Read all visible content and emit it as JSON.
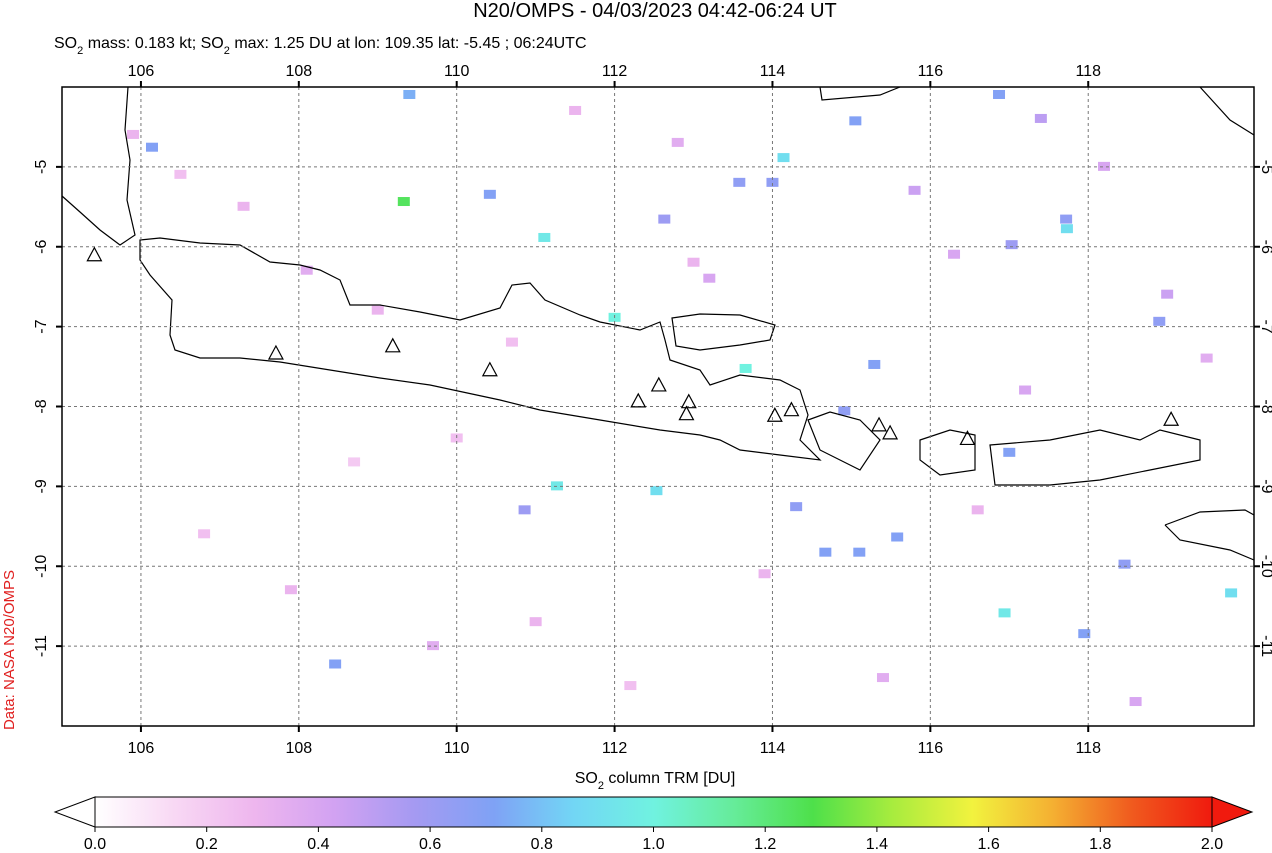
{
  "chart_data": {
    "type": "map",
    "title": "N20/OMPS - 04/03/2023 04:42-06:24 UT",
    "subtitle_parts": [
      "SO",
      "2",
      " mass: 0.183 kt; SO",
      "2",
      " max: 1.25 DU at lon: 109.35 lat: -5.45 ; 06:24UTC"
    ],
    "source": "Data: NASA N20/OMPS",
    "xlim": [
      105,
      120.1
    ],
    "ylim": [
      -12,
      -4
    ],
    "xticks": [
      106,
      108,
      110,
      112,
      114,
      116,
      118
    ],
    "yticks": [
      -5,
      -6,
      -7,
      -8,
      -9,
      -10,
      -11
    ],
    "grid": true,
    "colorbar": {
      "label_parts": [
        "SO",
        "2",
        " column TRM [DU]"
      ],
      "lim": [
        0,
        2
      ],
      "ticks": [
        {
          "value": 0,
          "label": "0.0"
        },
        {
          "value": 0.2,
          "label": "0.2"
        },
        {
          "value": 0.4,
          "label": "0.4"
        },
        {
          "value": 0.6,
          "label": "0.6"
        },
        {
          "value": 0.8,
          "label": "0.8"
        },
        {
          "value": 1,
          "label": "1.0"
        },
        {
          "value": 1.2,
          "label": "1.2"
        },
        {
          "value": 1.4,
          "label": "1.4"
        },
        {
          "value": 1.6,
          "label": "1.6"
        },
        {
          "value": 1.8,
          "label": "1.8"
        },
        {
          "value": 2,
          "label": "2.0"
        }
      ],
      "colors": [
        "#ffffff",
        "#f8d8f4",
        "#eeb6ee",
        "#d2a2f2",
        "#a59af2",
        "#7fa2f5",
        "#72d6f5",
        "#70f2e0",
        "#66ec9a",
        "#4ee04a",
        "#a8ec3e",
        "#f2f23e",
        "#f4b032",
        "#f05a1e",
        "#f01a0e"
      ]
    },
    "cells": {
      "lon": [
        109.33,
        111.11,
        112.0,
        113.66,
        111.27,
        112.53,
        114.14,
        116.94,
        119.81,
        117.73,
        109.4,
        106.14,
        110.42,
        115.05,
        116.87,
        113.58,
        114.0,
        112.63,
        117.72,
        117.03,
        115.29,
        114.91,
        117.0,
        114.67,
        115.1,
        115.58,
        114.3,
        117.95,
        118.46,
        118.9,
        108.46,
        110.86,
        105.9,
        106.5,
        107.3,
        108.1,
        109.0,
        110.0,
        111.5,
        112.8,
        113.2,
        115.8,
        116.3,
        117.4,
        118.2,
        119.0,
        119.5,
        106.8,
        107.9,
        109.7,
        111.0,
        112.2,
        113.9,
        115.4,
        116.6,
        118.6,
        108.7,
        110.7,
        113.0,
        117.2
      ],
      "lat": [
        -5.44,
        -5.89,
        -6.89,
        -7.53,
        -9.0,
        -9.06,
        -4.89,
        -10.59,
        -10.34,
        -5.78,
        -4.1,
        -4.76,
        -5.35,
        -4.43,
        -4.1,
        -5.2,
        -5.2,
        -5.66,
        -5.66,
        -5.98,
        -7.48,
        -8.06,
        -8.58,
        -9.83,
        -9.83,
        -9.64,
        -9.26,
        -10.85,
        -9.98,
        -6.94,
        -11.23,
        -9.3,
        -4.6,
        -5.1,
        -5.5,
        -6.3,
        -6.8,
        -8.4,
        -4.3,
        -4.7,
        -6.4,
        -5.3,
        -6.1,
        -4.4,
        -5.0,
        -6.6,
        -7.4,
        -9.6,
        -10.3,
        -11.0,
        -10.7,
        -11.5,
        -10.1,
        -11.4,
        -9.3,
        -11.7,
        -8.7,
        -7.2,
        -6.2,
        -7.8
      ],
      "values": [
        1.25,
        0.95,
        1.0,
        1.0,
        0.95,
        0.9,
        0.9,
        0.95,
        0.9,
        0.9,
        0.75,
        0.7,
        0.7,
        0.7,
        0.7,
        0.65,
        0.65,
        0.6,
        0.65,
        0.6,
        0.7,
        0.65,
        0.7,
        0.7,
        0.7,
        0.7,
        0.65,
        0.7,
        0.65,
        0.65,
        0.7,
        0.6,
        0.3,
        0.25,
        0.3,
        0.35,
        0.3,
        0.25,
        0.3,
        0.35,
        0.4,
        0.45,
        0.4,
        0.5,
        0.4,
        0.45,
        0.35,
        0.25,
        0.3,
        0.35,
        0.3,
        0.25,
        0.3,
        0.35,
        0.3,
        0.4,
        0.2,
        0.25,
        0.3,
        0.4
      ]
    },
    "volcanoes": {
      "lon": [
        105.41,
        107.71,
        109.19,
        110.42,
        112.3,
        112.56,
        112.94,
        112.91,
        114.03,
        114.24,
        115.35,
        115.49,
        116.47,
        119.05
      ],
      "lat": [
        -6.1,
        -7.33,
        -7.24,
        -7.54,
        -7.93,
        -7.73,
        -7.94,
        -8.09,
        -8.11,
        -8.04,
        -8.23,
        -8.33,
        -8.4,
        -8.16
      ]
    }
  }
}
